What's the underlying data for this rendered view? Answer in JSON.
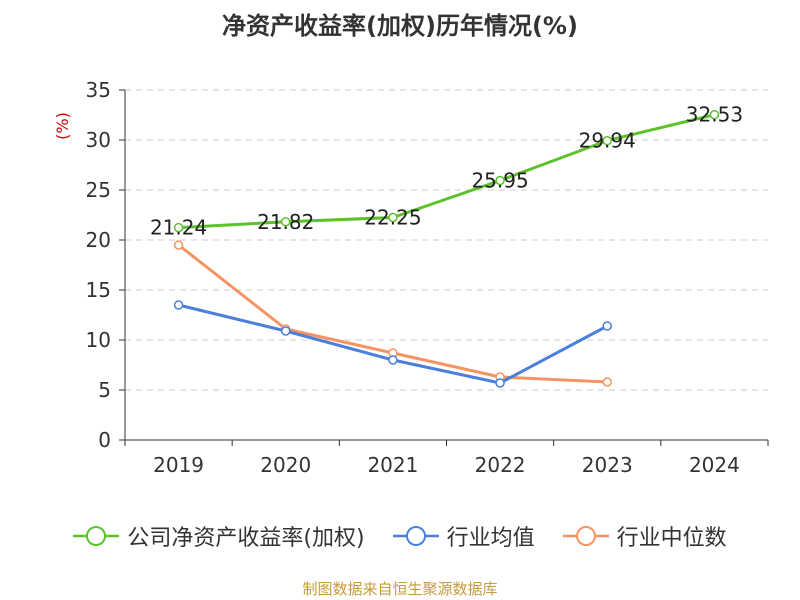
{
  "title": "净资产收益率(加权)历年情况(%)",
  "source": "制图数据来自恒生聚源数据库",
  "chart_data": {
    "type": "line",
    "title": "净资产收益率(加权)历年情况(%)",
    "ylabel": "(%)",
    "xlabel": "",
    "categories": [
      "2019",
      "2020",
      "2021",
      "2022",
      "2023",
      "2024"
    ],
    "ylim": [
      0,
      35
    ],
    "yticks": [
      0,
      5,
      10,
      15,
      20,
      25,
      30,
      35
    ],
    "grid": "horizontal dashed",
    "legend_position": "bottom",
    "series": [
      {
        "name": "公司净资产收益率(加权)",
        "color": "#5cc22a",
        "values": [
          21.24,
          21.82,
          22.25,
          25.95,
          29.94,
          32.53
        ],
        "labels": [
          "21.24",
          "21.82",
          "22.25",
          "25.95",
          "29.94",
          "32.53"
        ]
      },
      {
        "name": "行业均值",
        "color": "#4a7fdc",
        "values": [
          13.5,
          10.9,
          8.0,
          5.7,
          11.4,
          null
        ]
      },
      {
        "name": "行业中位数",
        "color": "#f59462",
        "values": [
          19.5,
          11.1,
          8.7,
          6.3,
          5.8,
          null
        ]
      }
    ]
  }
}
